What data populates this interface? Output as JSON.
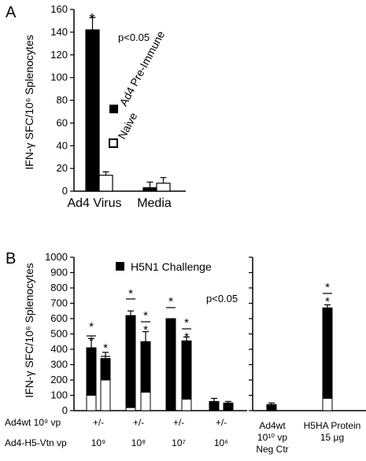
{
  "chart_data": [
    {
      "panel": "A",
      "type": "bar",
      "ylabel": "IFN-γ SFC/10⁶ Splenocytes",
      "ylim": [
        0,
        160
      ],
      "yticks": [
        0,
        20,
        40,
        60,
        80,
        100,
        120,
        140,
        160
      ],
      "categories": [
        "Ad4 Virus",
        "Media"
      ],
      "series": [
        {
          "name": "Ad4 Pre-Immune",
          "fill": "filled",
          "values": [
            142,
            3
          ],
          "errors": [
            11,
            5
          ]
        },
        {
          "name": "Naive",
          "fill": "open",
          "values": [
            14,
            7
          ],
          "errors": [
            3,
            5
          ]
        }
      ],
      "annotations": [
        "*",
        "p<0.05"
      ]
    },
    {
      "panel": "B",
      "type": "stacked-bar",
      "ylabel": "IFN-γ SFC/10⁶ Splenocytes",
      "ylim": [
        0,
        1000
      ],
      "yticks": [
        0,
        100,
        200,
        300,
        400,
        500,
        600,
        700,
        800,
        900,
        1000
      ],
      "legend": "H5N1 Challenge",
      "pvalue": "p<0.05",
      "bars": [
        {
          "group": 0,
          "total": 410,
          "white": 100,
          "err": 60
        },
        {
          "group": 0,
          "total": 340,
          "white": 200,
          "err": 40
        },
        {
          "group": 1,
          "total": 620,
          "white": 20,
          "err": 30
        },
        {
          "group": 1,
          "total": 450,
          "white": 120,
          "err": 65
        },
        {
          "group": 2,
          "total": 600,
          "white": 0,
          "err": 0
        },
        {
          "group": 2,
          "total": 455,
          "white": 75,
          "err": 25
        },
        {
          "group": 3,
          "total": 60,
          "white": 0,
          "err": 20
        },
        {
          "group": 3,
          "total": 50,
          "white": 0,
          "err": 10
        },
        {
          "group": 4,
          "total": 40,
          "white": 0,
          "err": 10
        },
        {
          "group": 5,
          "total": 670,
          "white": 80,
          "err": 20
        }
      ],
      "row1_label": "Ad4wt 10⁹ vp",
      "row2_label": "Ad4-H5-Vtn vp",
      "row1_values": [
        "+/-",
        "+/-",
        "+/-",
        "+/-"
      ],
      "row2_values": [
        "10⁹",
        "10⁸",
        "10⁷",
        "10⁶"
      ],
      "neg_ctr_label": [
        "Ad4wt",
        "10¹⁰ vp",
        "Neg Ctr"
      ],
      "protein_label": [
        "H5HA Protein",
        "15 μg"
      ],
      "significance": "*"
    }
  ],
  "panel_labels": {
    "a": "A",
    "b": "B"
  },
  "colors": {
    "bar_fill": "#000000",
    "bar_open": "#ffffff"
  }
}
